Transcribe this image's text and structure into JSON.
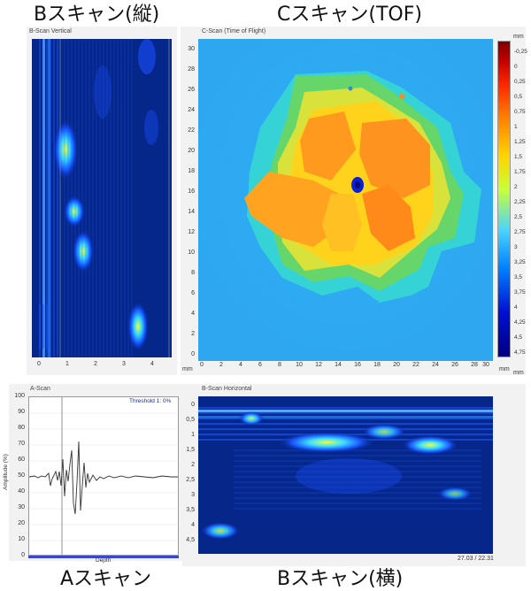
{
  "headings": {
    "bscan_vertical": "Bスキャン(縦)",
    "cscan": "Cスキャン(TOF)",
    "ascan": "Aスキャン",
    "bscan_horizontal": "Bスキャン(横)"
  },
  "panels": {
    "bscan_vertical_title": "B-Scan Vertical",
    "cscan_title": "C-Scan (Time of Flight)",
    "ascan_title": "A-Scan",
    "bscan_horizontal_title": "B-Scan Horizontal"
  },
  "bscan_vertical": {
    "x_ticks": [
      "0",
      "1",
      "2",
      "3",
      "4"
    ]
  },
  "cscan": {
    "y_ticks": [
      "30",
      "28",
      "26",
      "24",
      "22",
      "20",
      "18",
      "16",
      "14",
      "12",
      "10",
      "8",
      "6",
      "4",
      "2",
      "0"
    ],
    "x_ticks": [
      "0",
      "2",
      "4",
      "6",
      "8",
      "10",
      "12",
      "14",
      "16",
      "18",
      "20",
      "22",
      "24",
      "26",
      "28",
      "30"
    ],
    "unit_bottom_left": "mm",
    "unit_bottom_right": "mm",
    "unit_colorbar": "mm",
    "colorbar_labels": [
      "-0,25",
      "0",
      "0,25",
      "0,5",
      "0,75",
      "1",
      "1,25",
      "1,5",
      "1,75",
      "2",
      "2,25",
      "2,5",
      "2,75",
      "3",
      "3,25",
      "3,5",
      "3,75",
      "4",
      "4,25",
      "4,5",
      "4,75"
    ],
    "colorbar_colors": [
      "#7f0000",
      "#c00000",
      "#ff2a00",
      "#ff7f00",
      "#ffd200",
      "#c8ff38",
      "#4ad3ff",
      "#0080ff",
      "#0010d0",
      "#000080"
    ]
  },
  "ascan": {
    "y_ticks": [
      "100",
      "90",
      "80",
      "70",
      "60",
      "50",
      "40",
      "30",
      "20",
      "10",
      "0"
    ],
    "ylabel": "Amplitude (%)",
    "xlabel": "Depth",
    "threshold": "Threshold 1: 0%"
  },
  "bscan_horizontal": {
    "y_ticks": [
      "0",
      "0,5",
      "1",
      "1,5",
      "2",
      "2,5",
      "3",
      "3,5",
      "4",
      "4,5"
    ],
    "readout": "27.03 / 22.31"
  }
}
